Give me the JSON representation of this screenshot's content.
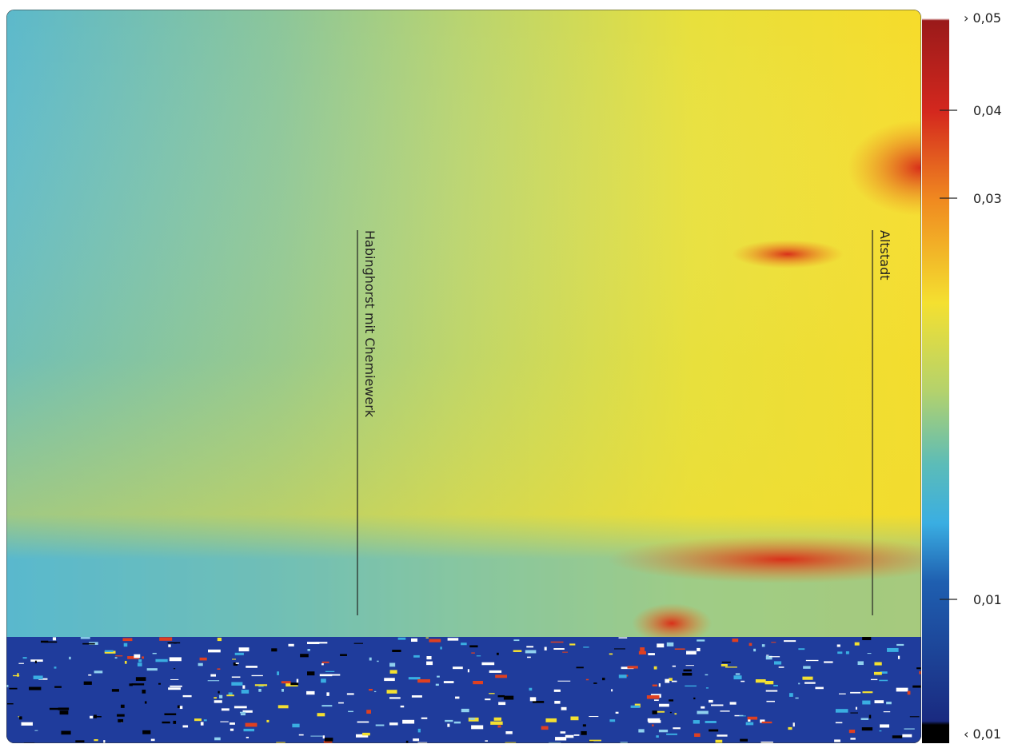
{
  "image": {
    "annotations": [
      {
        "label": "Habinghorst mit Chemiewerk"
      },
      {
        "label": "Altstadt"
      }
    ]
  },
  "colorbar": {
    "labels": [
      "› 0,05",
      "0,04",
      "0,03",
      "0,01",
      "‹ 0,01"
    ]
  }
}
